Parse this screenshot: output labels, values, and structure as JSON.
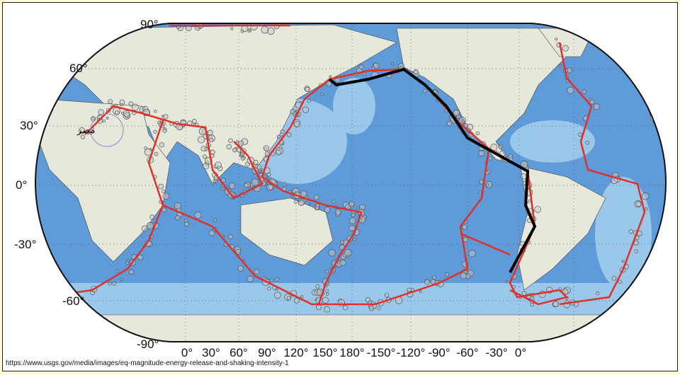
{
  "map": {
    "latitude_labels": [
      "90°",
      "60°",
      "30°",
      "0°",
      "-30°",
      "-60°",
      "-90°"
    ],
    "longitude_labels": [
      "0°",
      "30°",
      "60°",
      "90°",
      "120°",
      "150°",
      "180°",
      "-150°",
      "-120°",
      "-90°",
      "-60°",
      "-30°",
      "0°"
    ],
    "place_label": "مصر",
    "colors": {
      "ocean": "#5f9bd9",
      "shallow": "#a9d3ee",
      "land": "#e6e8dc",
      "plate_boundary": "#e0302a",
      "highlight_boundary": "#000000",
      "earthquake_marker": "#555555",
      "background": "#fdfbd8"
    }
  },
  "source_url": "https://www.usgs.gov/media/images/eq-magnitude-energy-release-and-shaking-intensity-1"
}
